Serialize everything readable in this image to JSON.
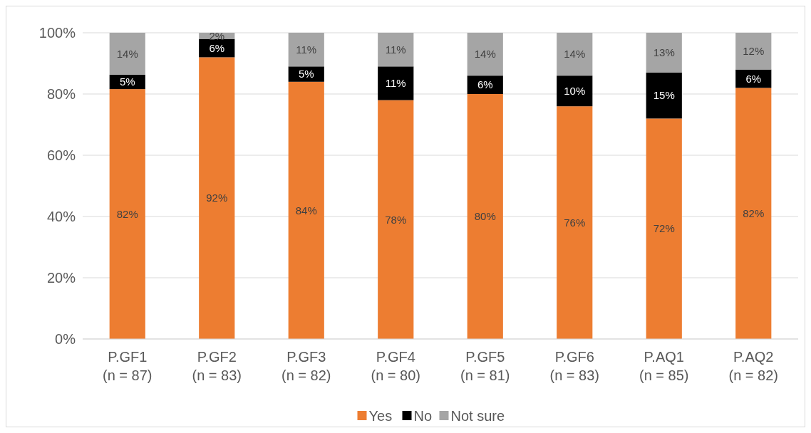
{
  "chart_data": {
    "type": "bar",
    "stacked": true,
    "categories": [
      "P.GF1\n(n = 87)",
      "P.GF2\n(n = 83)",
      "P.GF3\n(n = 82)",
      "P.GF4\n(n = 80)",
      "P.GF5\n(n = 81)",
      "P.GF6\n(n = 83)",
      "P.AQ1\n(n = 85)",
      "P.AQ2\n(n = 82)"
    ],
    "series": [
      {
        "name": "Yes",
        "color": "#ed7d31",
        "values": [
          81.6,
          92,
          84,
          78,
          80,
          76,
          72,
          82
        ],
        "value_labels": [
          "82%",
          "92%",
          "84%",
          "78%",
          "80%",
          "76%",
          "72%",
          "82%"
        ]
      },
      {
        "name": "No",
        "color": "#000000",
        "values": [
          4.7,
          6,
          5,
          11,
          6,
          10,
          15,
          6
        ],
        "value_labels": [
          "5%",
          "6%",
          "5%",
          "11%",
          "6%",
          "10%",
          "15%",
          "6%"
        ]
      },
      {
        "name": "Not sure",
        "color": "#a5a5a5",
        "values": [
          13.7,
          2,
          11,
          11,
          14,
          14,
          13,
          12
        ],
        "value_labels": [
          "14%",
          "2%",
          "11%",
          "11%",
          "14%",
          "14%",
          "13%",
          "12%"
        ]
      }
    ],
    "ylim": [
      0,
      100
    ],
    "yticks": [
      {
        "value": 0,
        "label": "0%"
      },
      {
        "value": 20,
        "label": "20%"
      },
      {
        "value": 40,
        "label": "40%"
      },
      {
        "value": 60,
        "label": "60%"
      },
      {
        "value": 80,
        "label": "80%"
      },
      {
        "value": 100,
        "label": "100%"
      }
    ],
    "grid": "y",
    "legend": "bottom"
  }
}
